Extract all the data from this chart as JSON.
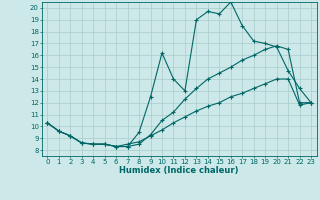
{
  "title": "",
  "xlabel": "Humidex (Indice chaleur)",
  "ylabel": "",
  "bg_color": "#cce8e8",
  "grid_color": "#aacccc",
  "line_color": "#006666",
  "xlim_min": -0.5,
  "xlim_max": 23.5,
  "ylim_min": 7.5,
  "ylim_max": 20.5,
  "yticks": [
    8,
    9,
    10,
    11,
    12,
    13,
    14,
    15,
    16,
    17,
    18,
    19,
    20
  ],
  "xticks": [
    0,
    1,
    2,
    3,
    4,
    5,
    6,
    7,
    8,
    9,
    10,
    11,
    12,
    13,
    14,
    15,
    16,
    17,
    18,
    19,
    20,
    21,
    22,
    23
  ],
  "line1_x": [
    0,
    1,
    2,
    3,
    4,
    5,
    6,
    7,
    8,
    9,
    10,
    11,
    12,
    13,
    14,
    15,
    16,
    17,
    18,
    19,
    20,
    21,
    22,
    23
  ],
  "line1_y": [
    10.3,
    9.6,
    9.2,
    8.6,
    8.5,
    8.5,
    8.3,
    8.3,
    9.5,
    12.5,
    16.2,
    14.0,
    13.0,
    19.0,
    19.7,
    19.5,
    20.5,
    18.5,
    17.2,
    17.0,
    16.7,
    14.7,
    13.2,
    12.0
  ],
  "line2_x": [
    0,
    1,
    2,
    3,
    4,
    5,
    6,
    7,
    8,
    9,
    10,
    11,
    12,
    13,
    14,
    15,
    16,
    17,
    18,
    19,
    20,
    21,
    22,
    23
  ],
  "line2_y": [
    10.3,
    9.6,
    9.2,
    8.6,
    8.5,
    8.5,
    8.3,
    8.3,
    8.5,
    9.3,
    10.5,
    11.2,
    12.3,
    13.2,
    14.0,
    14.5,
    15.0,
    15.6,
    16.0,
    16.5,
    16.8,
    16.5,
    12.0,
    12.0
  ],
  "line3_x": [
    0,
    1,
    2,
    3,
    4,
    5,
    6,
    7,
    8,
    9,
    10,
    11,
    12,
    13,
    14,
    15,
    16,
    17,
    18,
    19,
    20,
    21,
    22,
    23
  ],
  "line3_y": [
    10.3,
    9.6,
    9.2,
    8.6,
    8.5,
    8.5,
    8.3,
    8.5,
    8.7,
    9.2,
    9.7,
    10.3,
    10.8,
    11.3,
    11.7,
    12.0,
    12.5,
    12.8,
    13.2,
    13.6,
    14.0,
    14.0,
    11.8,
    12.0
  ],
  "tick_fontsize": 5.0,
  "xlabel_fontsize": 6.0
}
